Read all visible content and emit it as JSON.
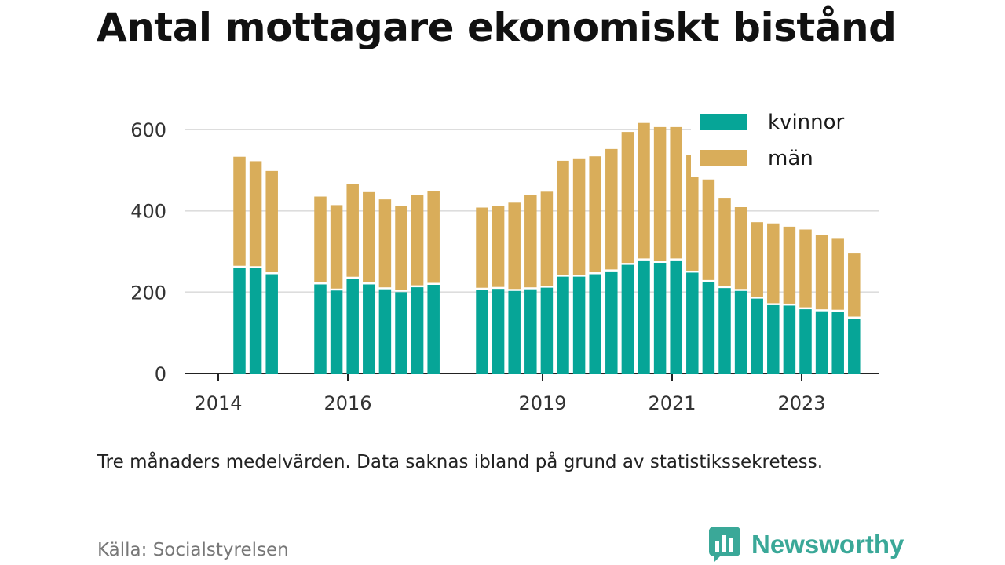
{
  "title": "Antal mottagare ekonomiskt bistånd",
  "note": "Tre månaders medelvärden. Data saknas ibland på grund av statistikssekretess.",
  "source": "Källa: Socialstyrelsen",
  "brand": {
    "name": "Newsworthy",
    "icon": "newsworthy-logo-icon"
  },
  "colors": {
    "kvinnor": "#06a597",
    "man": "#d9ad5a",
    "grid": "#dddddd",
    "axis": "#222222"
  },
  "chart_data": {
    "type": "bar",
    "stacked": true,
    "x_tick_labels": [
      "2014",
      "2016",
      "2019",
      "2021",
      "2023"
    ],
    "y_tick_labels": [
      "0",
      "200",
      "400",
      "600"
    ],
    "ylim": [
      0,
      650
    ],
    "grid": "horizontal",
    "legend_position": "top-right",
    "x": [
      "2014-Q3",
      "2014-Q4",
      "2015-Q1",
      "2015-Q2",
      "2015-Q3",
      "2015-Q4",
      "2016-Q1",
      "2016-Q2",
      "2016-Q3",
      "2016-Q4",
      "2017-Q1",
      "2017-Q2",
      "2017-Q3",
      "2017-Q4",
      "2018-Q1",
      "2018-Q2",
      "2018-Q3",
      "2018-Q4",
      "2019-Q1",
      "2019-Q2",
      "2019-Q3",
      "2019-Q4",
      "2020-Q1",
      "2020-Q2",
      "2020-Q3",
      "2020-Q4",
      "2021-Q1",
      "2021-Q2",
      "2021-Q3",
      "2021-Q4",
      "2022-Q1",
      "2022-Q2",
      "2022-Q3",
      "2022-Q4",
      "2023-Q1",
      "2023-Q2",
      "2023-Q3",
      "2023-Q4",
      "2024-Q1"
    ],
    "series": [
      {
        "name": "kvinnor",
        "values": [
          260,
          259,
          244,
          null,
          null,
          219,
          204,
          233,
          219,
          207,
          200,
          212,
          218,
          null,
          null,
          206,
          208,
          203,
          207,
          211,
          238,
          238,
          244,
          251,
          267,
          278,
          272,
          278,
          248,
          225,
          210,
          203,
          184,
          168,
          167,
          158,
          153,
          152,
          135
        ]
      },
      {
        "name": "män",
        "values": [
          273,
          263,
          254,
          null,
          null,
          216,
          210,
          232,
          227,
          221,
          211,
          226,
          230,
          null,
          null,
          202,
          203,
          217,
          231,
          236,
          285,
          291,
          290,
          301,
          327,
          338,
          334,
          328,
          290,
          252,
          222,
          206,
          188,
          201,
          194,
          196,
          187,
          181,
          160
        ]
      }
    ]
  }
}
